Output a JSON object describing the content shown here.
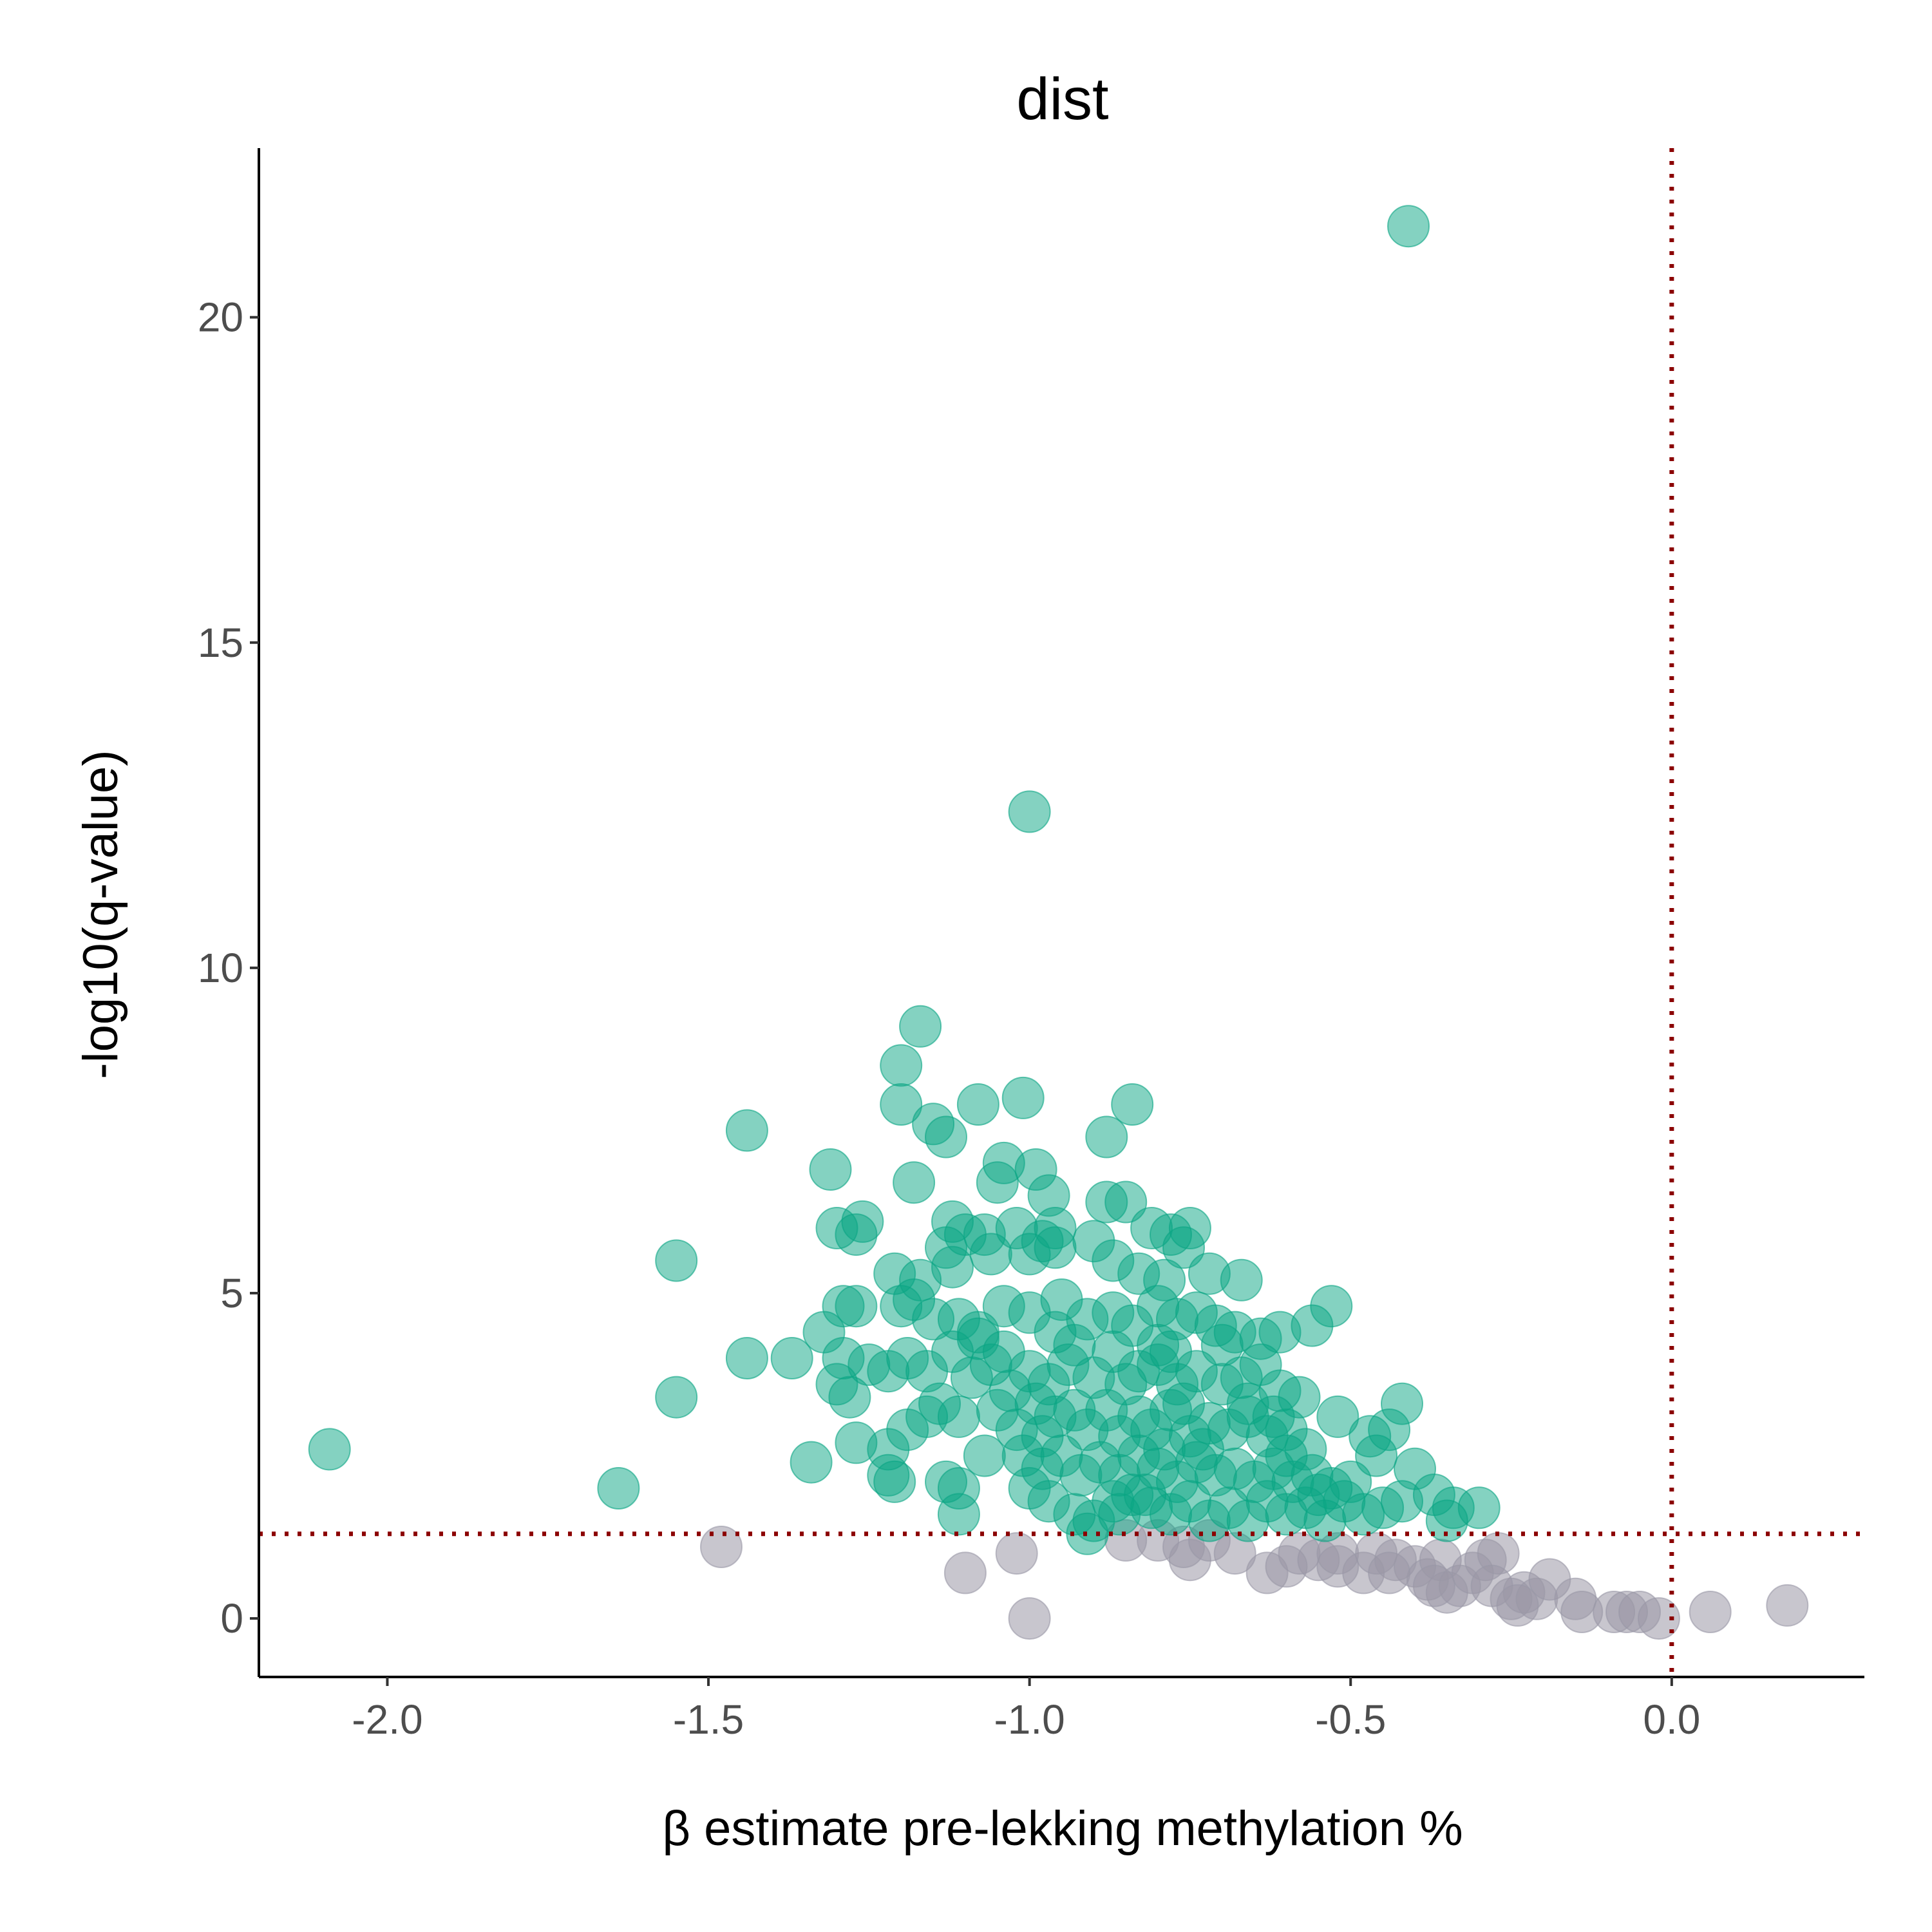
{
  "chart_data": {
    "type": "scatter",
    "title": "dist",
    "xlabel": "β estimate pre-lekking methylation %",
    "ylabel": "-log10(q-value)",
    "xlim": [
      -2.2,
      0.3
    ],
    "ylim": [
      -0.9,
      22.6
    ],
    "x_ticks": [
      {
        "value": -2.0,
        "label": "-2.0"
      },
      {
        "value": -1.5,
        "label": "-1.5"
      },
      {
        "value": -1.0,
        "label": "-1.0"
      },
      {
        "value": -0.5,
        "label": "-0.5"
      },
      {
        "value": 0.0,
        "label": "0.0"
      }
    ],
    "y_ticks": [
      {
        "value": 0,
        "label": "0"
      },
      {
        "value": 5,
        "label": "5"
      },
      {
        "value": 10,
        "label": "10"
      },
      {
        "value": 15,
        "label": "15"
      },
      {
        "value": 20,
        "label": "20"
      }
    ],
    "grid": false,
    "legend": "none",
    "reference_lines": {
      "vertical_x": 0.0,
      "horizontal_y": 1.3,
      "color": "#8b0000",
      "style": "dotted"
    },
    "colors": {
      "significant": "#0aa584",
      "not_significant": "#9a98a6",
      "axis": "#000000"
    },
    "series": [
      {
        "group": "significant",
        "points": [
          [
            -0.41,
            21.4
          ],
          [
            -1.0,
            12.4
          ],
          [
            -1.17,
            9.1
          ],
          [
            -1.2,
            8.5
          ],
          [
            -1.2,
            7.9
          ],
          [
            -1.08,
            7.9
          ],
          [
            -1.01,
            8.0
          ],
          [
            -0.84,
            7.9
          ],
          [
            -0.88,
            7.4
          ],
          [
            -1.44,
            7.5
          ],
          [
            -1.15,
            7.6
          ],
          [
            -1.13,
            7.4
          ],
          [
            -1.31,
            6.9
          ],
          [
            -1.18,
            6.7
          ],
          [
            -1.04,
            7.0
          ],
          [
            -1.05,
            6.7
          ],
          [
            -0.99,
            6.9
          ],
          [
            -0.97,
            6.5
          ],
          [
            -0.88,
            6.4
          ],
          [
            -0.85,
            6.4
          ],
          [
            -0.81,
            6.0
          ],
          [
            -0.75,
            6.0
          ],
          [
            -0.78,
            5.9
          ],
          [
            -0.76,
            5.7
          ],
          [
            -1.26,
            6.1
          ],
          [
            -1.3,
            6.0
          ],
          [
            -1.27,
            5.9
          ],
          [
            -1.12,
            6.1
          ],
          [
            -1.1,
            5.9
          ],
          [
            -1.07,
            5.9
          ],
          [
            -1.02,
            6.0
          ],
          [
            -0.98,
            5.8
          ],
          [
            -0.96,
            6.0
          ],
          [
            -1.55,
            5.5
          ],
          [
            -1.21,
            5.3
          ],
          [
            -1.17,
            5.2
          ],
          [
            -1.13,
            5.7
          ],
          [
            -1.12,
            5.4
          ],
          [
            -1.06,
            5.6
          ],
          [
            -1.0,
            5.6
          ],
          [
            -0.96,
            5.7
          ],
          [
            -0.9,
            5.8
          ],
          [
            -0.87,
            5.5
          ],
          [
            -0.83,
            5.3
          ],
          [
            -0.79,
            5.2
          ],
          [
            -0.72,
            5.3
          ],
          [
            -0.67,
            5.2
          ],
          [
            -0.53,
            4.8
          ],
          [
            -1.29,
            4.8
          ],
          [
            -1.27,
            4.8
          ],
          [
            -1.2,
            4.8
          ],
          [
            -1.18,
            4.9
          ],
          [
            -1.15,
            4.6
          ],
          [
            -1.11,
            4.6
          ],
          [
            -1.08,
            4.4
          ],
          [
            -1.04,
            4.8
          ],
          [
            -1.0,
            4.7
          ],
          [
            -0.95,
            4.9
          ],
          [
            -0.91,
            4.6
          ],
          [
            -0.87,
            4.7
          ],
          [
            -0.84,
            4.5
          ],
          [
            -0.8,
            4.8
          ],
          [
            -0.77,
            4.6
          ],
          [
            -0.74,
            4.7
          ],
          [
            -0.71,
            4.5
          ],
          [
            -0.68,
            4.4
          ],
          [
            -0.64,
            4.3
          ],
          [
            -0.61,
            4.4
          ],
          [
            -0.56,
            4.5
          ],
          [
            -1.32,
            4.4
          ],
          [
            -1.29,
            4.0
          ],
          [
            -1.25,
            3.9
          ],
          [
            -1.22,
            3.8
          ],
          [
            -1.19,
            4.0
          ],
          [
            -1.16,
            3.8
          ],
          [
            -1.12,
            4.1
          ],
          [
            -1.09,
            3.7
          ],
          [
            -1.06,
            3.9
          ],
          [
            -1.03,
            3.5
          ],
          [
            -1.0,
            3.8
          ],
          [
            -0.97,
            3.6
          ],
          [
            -0.94,
            3.9
          ],
          [
            -0.9,
            3.7
          ],
          [
            -0.87,
            4.1
          ],
          [
            -0.83,
            3.8
          ],
          [
            -0.8,
            3.9
          ],
          [
            -0.77,
            3.6
          ],
          [
            -0.74,
            3.8
          ],
          [
            -0.7,
            3.6
          ],
          [
            -0.67,
            3.7
          ],
          [
            -0.64,
            3.9
          ],
          [
            -0.61,
            3.5
          ],
          [
            -0.58,
            3.4
          ],
          [
            -1.44,
            4.0
          ],
          [
            -1.37,
            4.0
          ],
          [
            -1.55,
            3.4
          ],
          [
            -1.3,
            3.6
          ],
          [
            -1.28,
            3.4
          ],
          [
            -1.27,
            2.7
          ],
          [
            -1.22,
            2.6
          ],
          [
            -1.22,
            2.2
          ],
          [
            -1.21,
            2.1
          ],
          [
            -1.19,
            2.9
          ],
          [
            -1.16,
            3.1
          ],
          [
            -1.14,
            3.3
          ],
          [
            -1.13,
            2.1
          ],
          [
            -1.11,
            3.1
          ],
          [
            -1.11,
            2.0
          ],
          [
            -1.07,
            2.5
          ],
          [
            -1.05,
            3.2
          ],
          [
            -1.02,
            2.9
          ],
          [
            -0.99,
            3.3
          ],
          [
            -0.98,
            2.8
          ],
          [
            -0.96,
            3.1
          ],
          [
            -0.93,
            3.2
          ],
          [
            -0.91,
            2.9
          ],
          [
            -0.88,
            3.2
          ],
          [
            -0.86,
            2.8
          ],
          [
            -0.83,
            3.1
          ],
          [
            -0.81,
            2.9
          ],
          [
            -0.78,
            3.2
          ],
          [
            -0.75,
            2.8
          ],
          [
            -0.72,
            3.0
          ],
          [
            -0.69,
            2.9
          ],
          [
            -0.66,
            3.1
          ],
          [
            -0.63,
            2.8
          ],
          [
            -0.6,
            2.9
          ],
          [
            -0.57,
            2.6
          ],
          [
            -0.52,
            3.1
          ],
          [
            -0.42,
            3.3
          ],
          [
            -0.44,
            2.9
          ],
          [
            -0.47,
            2.8
          ],
          [
            -0.46,
            2.5
          ],
          [
            -1.34,
            2.4
          ],
          [
            -1.01,
            2.5
          ],
          [
            -0.98,
            2.3
          ],
          [
            -0.95,
            2.5
          ],
          [
            -0.92,
            2.2
          ],
          [
            -0.89,
            2.4
          ],
          [
            -0.86,
            2.2
          ],
          [
            -0.83,
            2.5
          ],
          [
            -0.8,
            2.3
          ],
          [
            -0.77,
            2.1
          ],
          [
            -0.74,
            2.4
          ],
          [
            -0.71,
            2.2
          ],
          [
            -0.68,
            2.3
          ],
          [
            -0.65,
            2.1
          ],
          [
            -0.62,
            2.3
          ],
          [
            -0.59,
            2.1
          ],
          [
            -0.56,
            2.2
          ],
          [
            -0.53,
            2.0
          ],
          [
            -0.5,
            2.1
          ],
          [
            -0.4,
            2.3
          ],
          [
            -0.37,
            1.9
          ],
          [
            -1.64,
            2.0
          ],
          [
            -2.09,
            2.6
          ],
          [
            -1.0,
            2.0
          ],
          [
            -0.97,
            1.8
          ],
          [
            -0.93,
            1.6
          ],
          [
            -0.9,
            1.5
          ],
          [
            -0.91,
            1.3
          ],
          [
            -0.87,
            1.8
          ],
          [
            -0.84,
            1.9
          ],
          [
            -0.81,
            1.7
          ],
          [
            -0.78,
            1.6
          ],
          [
            -0.75,
            1.8
          ],
          [
            -0.72,
            1.5
          ],
          [
            -0.69,
            1.7
          ],
          [
            -0.66,
            1.5
          ],
          [
            -0.63,
            1.8
          ],
          [
            -0.6,
            1.6
          ],
          [
            -0.57,
            1.7
          ],
          [
            -0.54,
            1.5
          ],
          [
            -0.51,
            1.8
          ],
          [
            -0.48,
            1.6
          ],
          [
            -0.45,
            1.7
          ],
          [
            -0.42,
            1.8
          ],
          [
            -0.34,
            1.7
          ],
          [
            -0.3,
            1.7
          ],
          [
            -0.35,
            1.5
          ],
          [
            -1.11,
            1.6
          ],
          [
            -0.86,
            1.6
          ],
          [
            -0.82,
            1.9
          ],
          [
            -0.79,
            2.6
          ],
          [
            -0.76,
            3.3
          ],
          [
            -0.73,
            2.6
          ],
          [
            -0.85,
            3.6
          ],
          [
            -0.8,
            4.2
          ],
          [
            -0.78,
            4.1
          ],
          [
            -0.93,
            4.2
          ],
          [
            -0.96,
            4.4
          ],
          [
            -1.08,
            4.3
          ],
          [
            -1.04,
            4.1
          ],
          [
            -0.7,
            4.2
          ],
          [
            -0.66,
            3.3
          ],
          [
            -0.62,
            3.1
          ],
          [
            -0.6,
            2.5
          ],
          [
            -0.55,
            1.9
          ]
        ]
      },
      {
        "group": "not_significant",
        "points": [
          [
            -1.48,
            1.1
          ],
          [
            -1.1,
            0.7
          ],
          [
            -1.02,
            1.0
          ],
          [
            -1.0,
            0.0
          ],
          [
            -0.85,
            1.2
          ],
          [
            -0.8,
            1.2
          ],
          [
            -0.76,
            1.1
          ],
          [
            -0.75,
            0.9
          ],
          [
            -0.72,
            1.2
          ],
          [
            -0.68,
            1.0
          ],
          [
            -0.63,
            0.7
          ],
          [
            -0.6,
            0.8
          ],
          [
            -0.58,
            1.0
          ],
          [
            -0.55,
            0.9
          ],
          [
            -0.52,
            1.0
          ],
          [
            -0.48,
            0.7
          ],
          [
            -0.46,
            1.0
          ],
          [
            -0.43,
            0.9
          ],
          [
            -0.4,
            0.8
          ],
          [
            -0.38,
            0.6
          ],
          [
            -0.36,
            0.9
          ],
          [
            -0.35,
            0.4
          ],
          [
            -0.33,
            0.5
          ],
          [
            -0.31,
            0.7
          ],
          [
            -0.29,
            0.9
          ],
          [
            -0.27,
            1.0
          ],
          [
            -0.25,
            0.3
          ],
          [
            -0.23,
            0.4
          ],
          [
            -0.21,
            0.3
          ],
          [
            -0.19,
            0.6
          ],
          [
            -0.15,
            0.3
          ],
          [
            -0.14,
            0.1
          ],
          [
            -0.09,
            0.1
          ],
          [
            -0.07,
            0.1
          ],
          [
            -0.05,
            0.1
          ],
          [
            -0.02,
            0.0
          ],
          [
            0.06,
            0.1
          ],
          [
            0.18,
            0.2
          ],
          [
            -0.52,
            0.8
          ],
          [
            -0.44,
            0.7
          ],
          [
            -0.37,
            0.5
          ],
          [
            -0.28,
            0.5
          ],
          [
            -0.24,
            0.2
          ]
        ]
      }
    ]
  }
}
